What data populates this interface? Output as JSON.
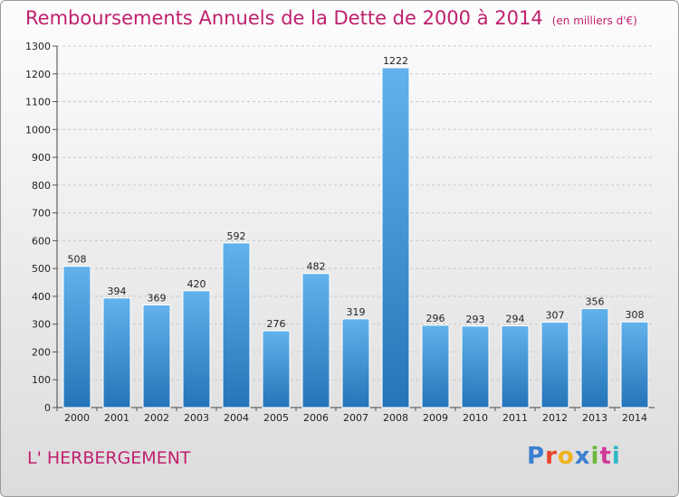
{
  "header": {
    "title": "Remboursements Annuels de la Dette de 2000 à 2014",
    "unit": "(en milliers d'€)"
  },
  "footer": {
    "commune": "L' HERBERGEMENT",
    "logo": "Proxiti",
    "logo_colors": [
      "#3a7fd0",
      "#e8422a",
      "#f0b21e",
      "#3a7fd0",
      "#6cb83a",
      "#d23a9a",
      "#2eb8c8"
    ]
  },
  "chart_data": {
    "type": "bar",
    "categories": [
      "2000",
      "2001",
      "2002",
      "2003",
      "2004",
      "2005",
      "2006",
      "2007",
      "2008",
      "2009",
      "2010",
      "2011",
      "2012",
      "2013",
      "2014"
    ],
    "values": [
      508,
      394,
      369,
      420,
      592,
      276,
      482,
      319,
      1222,
      296,
      293,
      294,
      307,
      356,
      308
    ],
    "title": "Remboursements Annuels de la Dette de 2000 à 2014",
    "subtitle": "(en milliers d'€)",
    "ylim": [
      0,
      1300
    ],
    "yticks": [
      0,
      100,
      200,
      300,
      400,
      500,
      600,
      700,
      800,
      900,
      1000,
      1100,
      1200,
      1300
    ],
    "grid": true,
    "bar_color_light": "#62b2ec",
    "bar_color_dark": "#2574b8"
  }
}
